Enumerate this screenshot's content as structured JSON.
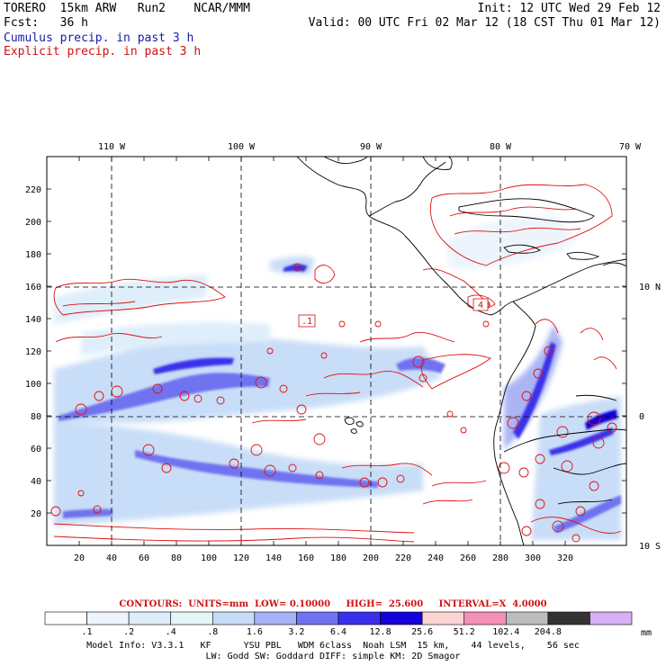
{
  "header": {
    "model": "TORERO  15km ARW   Run2    NCAR/MMM",
    "init": "Init: 12 UTC Wed 29 Feb 12",
    "fcst": "Fcst:   36 h",
    "valid": "Valid: 00 UTC Fri 02 Mar 12 (18 CST Thu 01 Mar 12)",
    "field1": "Cumulus precip. in past 3 h",
    "field2": "Explicit precip. in past 3 h"
  },
  "colors": {
    "cumulus_text": "#1a1aa8",
    "explicit_text": "#d01010",
    "contour_line": "#e01010",
    "coast": "#000000",
    "grid": "#000000"
  },
  "map": {
    "lon_labels": [
      "110 W",
      "100 W",
      "90 W",
      "80 W",
      "70 W"
    ],
    "lat_labels": [
      "10 N",
      "0",
      "10 S"
    ],
    "x_ticks": [
      "20",
      "40",
      "60",
      "80",
      "100",
      "120",
      "140",
      "160",
      "180",
      "200",
      "220",
      "240",
      "260",
      "280",
      "300",
      "320"
    ],
    "y_ticks": [
      "20",
      "40",
      "60",
      "80",
      "100",
      "120",
      "140",
      "160",
      "180",
      "200",
      "220"
    ],
    "contour_labels": [
      ".1",
      "4"
    ]
  },
  "contours_line": {
    "title": "CONTOURS:  UNITS=mm  LOW= 0.10000     HIGH=  25.600     INTERVAL=X  4.0000"
  },
  "colorbar": {
    "labels": [
      ".1",
      ".2",
      ".4",
      ".8",
      "1.6",
      "3.2",
      "6.4",
      "12.8",
      "25.6",
      "51.2",
      "102.4",
      "204.8"
    ],
    "unit": "mm",
    "colors": [
      "#ffffff",
      "#eef4fc",
      "#ddeefa",
      "#e4f6f8",
      "#c6dcf7",
      "#a7b2f4",
      "#7072f0",
      "#3a30ea",
      "#1400d8",
      "#fcd4d4",
      "#f390b8",
      "#bdbdbd",
      "#333333",
      "#d8aef4"
    ]
  },
  "footer": {
    "line1": "Model Info: V3.3.1   KF      YSU PBL   WDM 6class  Noah LSM  15 km,    44 levels,    56 sec",
    "line2": "LW: Godd SW: Goddard DIFF: simple KM: 2D Smagor"
  }
}
